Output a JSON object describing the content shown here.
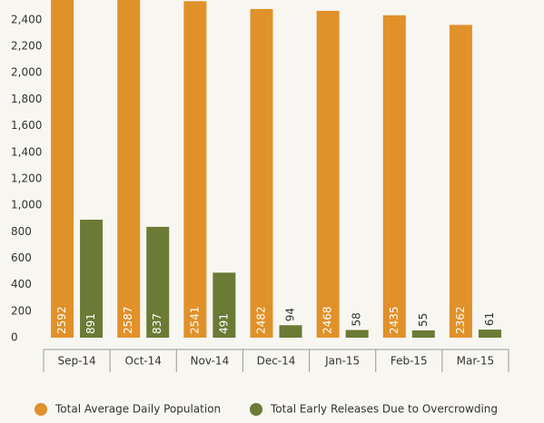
{
  "chart_data": {
    "type": "bar",
    "categories": [
      "Sep-14",
      "Oct-14",
      "Nov-14",
      "Dec-14",
      "Jan-15",
      "Feb-15",
      "Mar-15"
    ],
    "series": [
      {
        "name": "Total Average Daily Population",
        "color": "#e0912a",
        "values": [
          2592,
          2587,
          2541,
          2482,
          2468,
          2435,
          2362
        ]
      },
      {
        "name": "Total Early Releases Due to Overcrowding",
        "color": "#6b7a35",
        "values": [
          891,
          837,
          491,
          94,
          58,
          55,
          61
        ]
      }
    ],
    "ylim": [
      0,
      2550
    ],
    "yticks": [
      0,
      200,
      400,
      600,
      800,
      {
        "value": 1000,
        "label": "1,000"
      },
      {
        "value": 1200,
        "label": "1,200"
      },
      {
        "value": 1400,
        "label": "1,400"
      },
      {
        "value": 1600,
        "label": "1,600"
      },
      {
        "value": 1800,
        "label": "1,800"
      },
      {
        "value": 2000,
        "label": "2,000"
      },
      {
        "value": 2200,
        "label": "2,200"
      },
      {
        "value": 2400,
        "label": "2,400"
      }
    ],
    "grid": false,
    "legend": "bottom"
  }
}
